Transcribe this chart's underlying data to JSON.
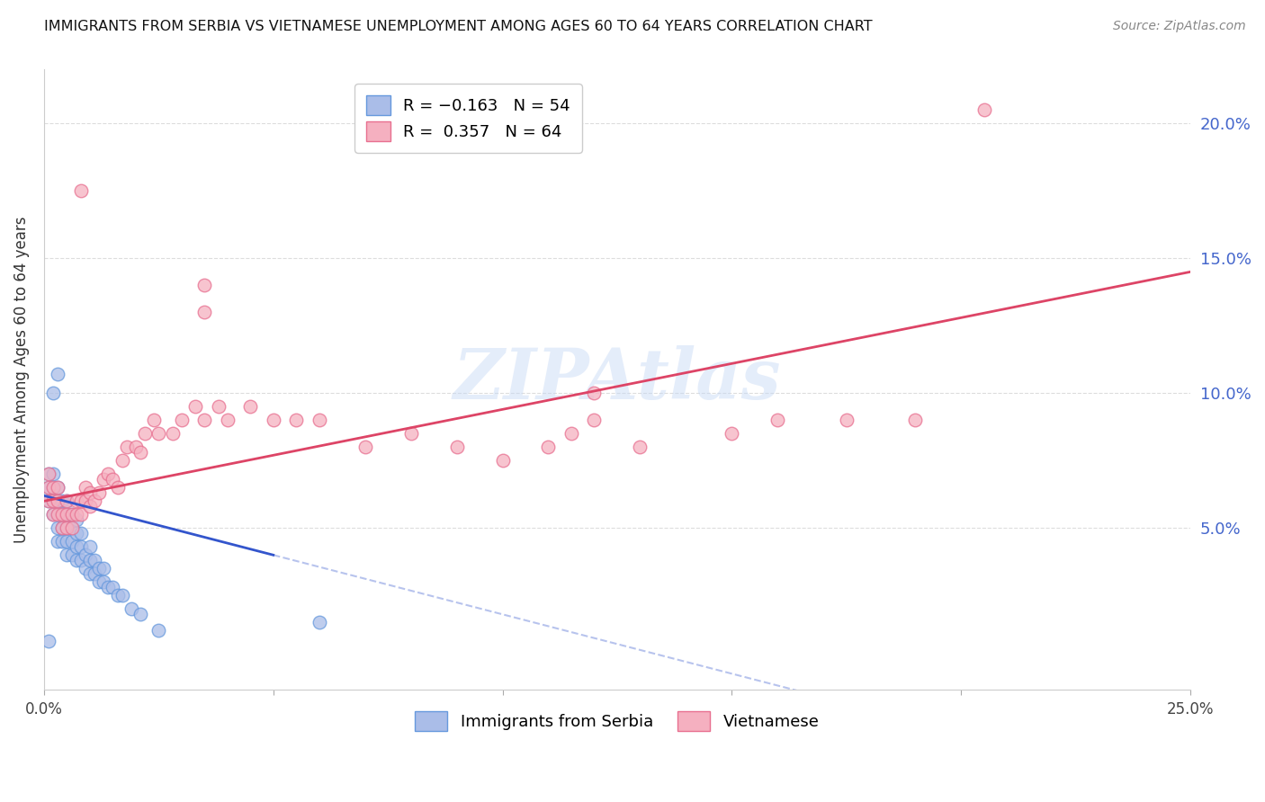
{
  "title": "IMMIGRANTS FROM SERBIA VS VIETNAMESE UNEMPLOYMENT AMONG AGES 60 TO 64 YEARS CORRELATION CHART",
  "source": "Source: ZipAtlas.com",
  "ylabel": "Unemployment Among Ages 60 to 64 years",
  "xlim": [
    0.0,
    0.25
  ],
  "ylim": [
    -0.01,
    0.22
  ],
  "yticks_right": [
    0.05,
    0.1,
    0.15,
    0.2
  ],
  "ytick_labels_right": [
    "5.0%",
    "10.0%",
    "15.0%",
    "20.0%"
  ],
  "watermark": "ZIPAtlas",
  "serbia_edge_color": "#6699dd",
  "serbia_face_color": "#aabde8",
  "vietnamese_edge_color": "#e87090",
  "vietnamese_face_color": "#f5b0c0",
  "serbia_line_color": "#3355cc",
  "vietnamese_line_color": "#dd4466",
  "grid_color": "#dddddd",
  "background_color": "#ffffff",
  "title_color": "#111111",
  "axis_label_color": "#333333",
  "right_tick_color": "#4466cc",
  "serbia_line_x0": 0.0,
  "serbia_line_y0": 0.062,
  "serbia_line_x1": 0.05,
  "serbia_line_y1": 0.04,
  "viet_line_x0": 0.0,
  "viet_line_y0": 0.06,
  "viet_line_x1": 0.25,
  "viet_line_y1": 0.145,
  "serbia_x": [
    0.001,
    0.001,
    0.001,
    0.002,
    0.002,
    0.002,
    0.002,
    0.003,
    0.003,
    0.003,
    0.003,
    0.003,
    0.004,
    0.004,
    0.004,
    0.004,
    0.005,
    0.005,
    0.005,
    0.005,
    0.005,
    0.006,
    0.006,
    0.006,
    0.006,
    0.007,
    0.007,
    0.007,
    0.007,
    0.008,
    0.008,
    0.008,
    0.009,
    0.009,
    0.01,
    0.01,
    0.01,
    0.011,
    0.011,
    0.012,
    0.012,
    0.013,
    0.013,
    0.014,
    0.015,
    0.016,
    0.017,
    0.019,
    0.021,
    0.025,
    0.002,
    0.003,
    0.06,
    0.001
  ],
  "serbia_y": [
    0.06,
    0.065,
    0.07,
    0.055,
    0.06,
    0.065,
    0.07,
    0.045,
    0.05,
    0.055,
    0.06,
    0.065,
    0.045,
    0.05,
    0.055,
    0.06,
    0.04,
    0.045,
    0.05,
    0.055,
    0.06,
    0.04,
    0.045,
    0.05,
    0.055,
    0.038,
    0.043,
    0.048,
    0.053,
    0.038,
    0.043,
    0.048,
    0.035,
    0.04,
    0.033,
    0.038,
    0.043,
    0.033,
    0.038,
    0.03,
    0.035,
    0.03,
    0.035,
    0.028,
    0.028,
    0.025,
    0.025,
    0.02,
    0.018,
    0.012,
    0.1,
    0.107,
    0.015,
    0.008
  ],
  "viet_x": [
    0.001,
    0.001,
    0.001,
    0.002,
    0.002,
    0.002,
    0.003,
    0.003,
    0.003,
    0.004,
    0.004,
    0.005,
    0.005,
    0.005,
    0.006,
    0.006,
    0.007,
    0.007,
    0.008,
    0.008,
    0.009,
    0.009,
    0.01,
    0.01,
    0.011,
    0.012,
    0.013,
    0.014,
    0.015,
    0.016,
    0.017,
    0.018,
    0.02,
    0.021,
    0.022,
    0.024,
    0.025,
    0.028,
    0.03,
    0.033,
    0.035,
    0.038,
    0.04,
    0.045,
    0.05,
    0.055,
    0.06,
    0.07,
    0.08,
    0.09,
    0.1,
    0.11,
    0.115,
    0.12,
    0.13,
    0.15,
    0.16,
    0.175,
    0.19,
    0.205,
    0.008,
    0.035,
    0.035,
    0.12
  ],
  "viet_y": [
    0.06,
    0.065,
    0.07,
    0.055,
    0.06,
    0.065,
    0.055,
    0.06,
    0.065,
    0.05,
    0.055,
    0.05,
    0.055,
    0.06,
    0.05,
    0.055,
    0.055,
    0.06,
    0.055,
    0.06,
    0.06,
    0.065,
    0.058,
    0.063,
    0.06,
    0.063,
    0.068,
    0.07,
    0.068,
    0.065,
    0.075,
    0.08,
    0.08,
    0.078,
    0.085,
    0.09,
    0.085,
    0.085,
    0.09,
    0.095,
    0.09,
    0.095,
    0.09,
    0.095,
    0.09,
    0.09,
    0.09,
    0.08,
    0.085,
    0.08,
    0.075,
    0.08,
    0.085,
    0.09,
    0.08,
    0.085,
    0.09,
    0.09,
    0.09,
    0.205,
    0.175,
    0.14,
    0.13,
    0.1
  ]
}
